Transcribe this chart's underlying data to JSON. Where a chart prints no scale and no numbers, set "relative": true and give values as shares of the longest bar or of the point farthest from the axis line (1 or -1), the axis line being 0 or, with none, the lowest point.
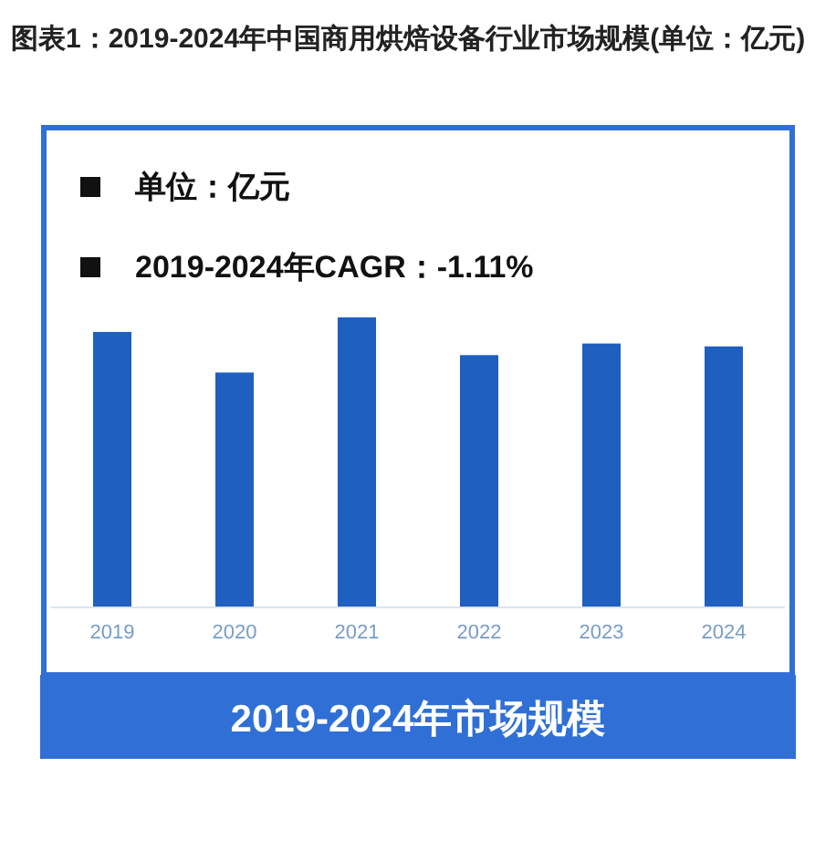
{
  "chart_data": {
    "type": "bar",
    "title": "图表1：2019-2024年中国商用烘焙设备行业市场规模(单位：亿元)",
    "categories": [
      "2019",
      "2020",
      "2021",
      "2022",
      "2023",
      "2024"
    ],
    "values": [
      0.95,
      0.81,
      1,
      0.87,
      0.91,
      0.9
    ],
    "relative": true,
    "color": "#1f5fbf",
    "xlabel": "2019-2024年市场规模",
    "annotations": [
      "单位：亿元",
      "2019-2024年CAGR：-1.11%"
    ]
  }
}
